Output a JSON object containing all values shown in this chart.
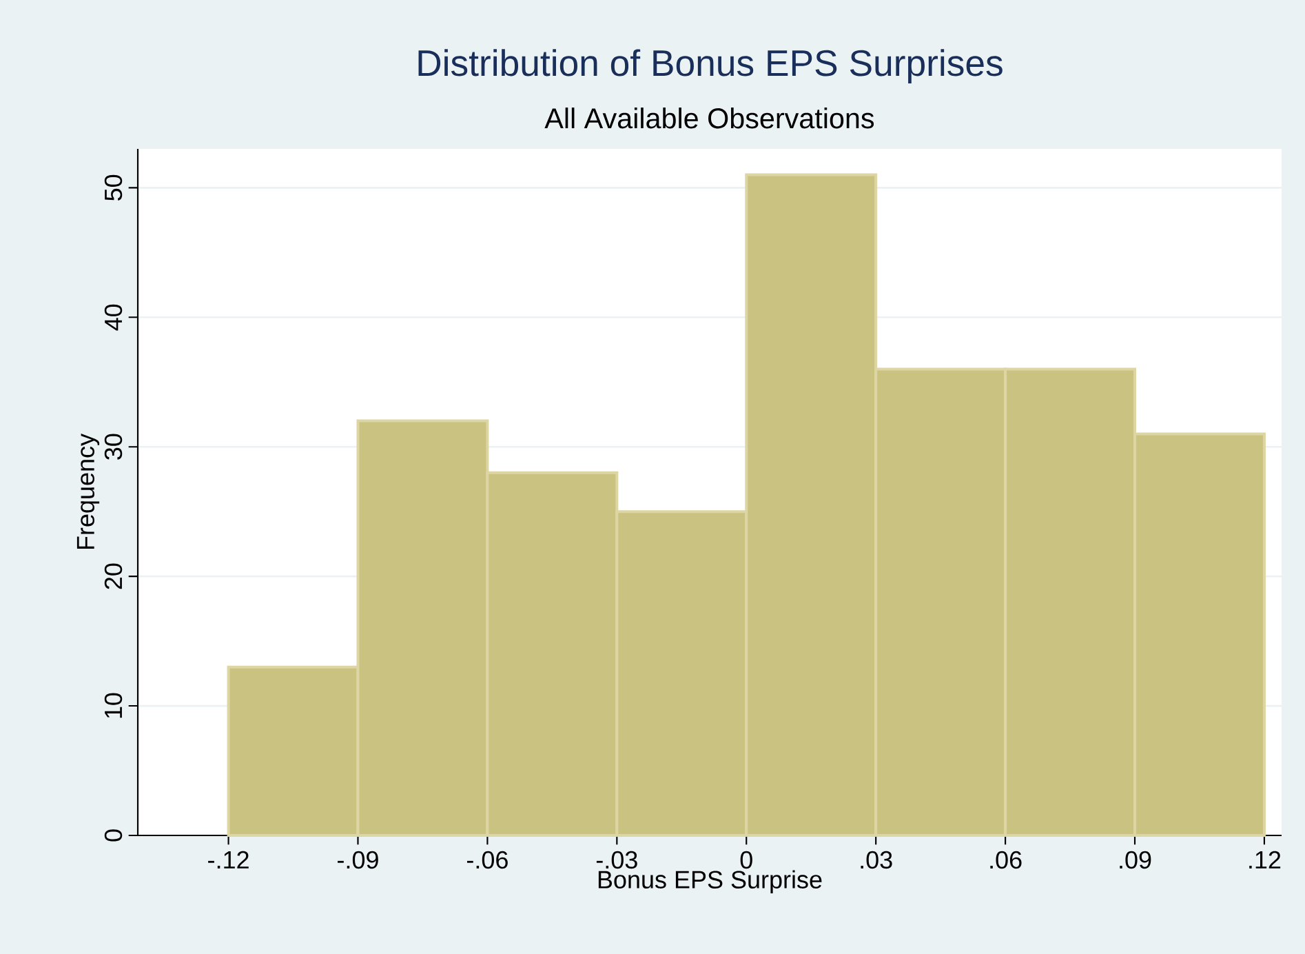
{
  "chart_data": {
    "type": "histogram",
    "title": "Distribution of Bonus EPS Surprises",
    "subtitle": "All Available Observations",
    "xlabel": "Bonus EPS Surprise",
    "ylabel": "Frequency",
    "bins": [
      -0.12,
      -0.09,
      -0.06,
      -0.03,
      0,
      0.03,
      0.06,
      0.09,
      0.12
    ],
    "values": [
      13,
      32,
      28,
      25,
      51,
      36,
      36,
      31
    ],
    "color": "#c9c281",
    "xlim": [
      -0.141,
      0.124
    ],
    "ylim": [
      0,
      53
    ],
    "xticks": [
      {
        "value": -0.12,
        "label": "-.12"
      },
      {
        "value": -0.09,
        "label": "-.09"
      },
      {
        "value": -0.06,
        "label": "-.06"
      },
      {
        "value": -0.03,
        "label": "-.03"
      },
      0,
      {
        "value": 0.03,
        "label": ".03"
      },
      {
        "value": 0.06,
        "label": ".06"
      },
      {
        "value": 0.09,
        "label": ".09"
      },
      {
        "value": 0.12,
        "label": ".12"
      }
    ],
    "yticks": [
      0,
      10,
      20,
      30,
      40,
      50
    ],
    "grid": "y"
  }
}
